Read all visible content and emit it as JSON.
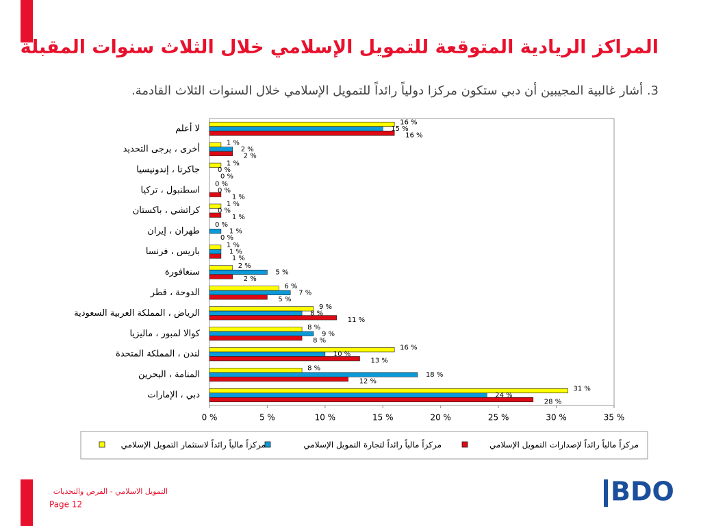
{
  "chart_data": {
    "type": "bar",
    "orientation": "horizontal",
    "title": "المراكز الريادية المتوقعة للتمويل الإسلامي خلال الثلاث سنوات المقبلة",
    "subtitle": "3. أشار غالبية المجيبين أن دبي ستكون مركزا دولياً رائداً للتمويل الإسلامي خلال السنوات الثلاث القادمة.",
    "categories": [
      "لا أعلم",
      "أخرى ، يرجى التحديد",
      "جاكرتا ، إندونيسيا",
      "اسطنبول ، تركيا",
      "كراتشي ، باكستان",
      "طهران ، إيران",
      "باريس ، فرنسا",
      "سنغافورة",
      "الدوحة ، قطر",
      "الرياض ، المملكة العربية السعودية",
      "كوالا لمبور ، ماليزيا",
      "لندن ، المملكة المتحدة",
      "المنامة ، البحرين",
      "دبي ، الإمارات"
    ],
    "series": [
      {
        "name": "مركزاً مالياً رائداً لاستثمار التمويل الإسلامي",
        "color": "#ffff00",
        "values": [
          16,
          1,
          1,
          0,
          1,
          0,
          1,
          2,
          6,
          9,
          8,
          16,
          8,
          31
        ],
        "value_labels": [
          "16 %",
          "1 %",
          "1 %",
          "0 %",
          "1 %",
          "0 %",
          "1 %",
          "2 %",
          "6 %",
          "9 %",
          "8 %",
          "16 %",
          "8 %",
          "31 %"
        ]
      },
      {
        "name": "مركزاً مالياً رائداً لتجارة التمويل الإسلامي",
        "color": "#0b9ad9",
        "values": [
          15,
          2,
          0,
          0,
          0,
          1,
          1,
          5,
          7,
          8,
          9,
          10,
          18,
          24
        ],
        "value_labels": [
          "15 %",
          "2 %",
          "0 %",
          "0 %",
          "0 %",
          "1 %",
          "1 %",
          "5 %",
          "7 %",
          "8 %",
          "9 %",
          "10 %",
          "18 %",
          "24 %"
        ]
      },
      {
        "name": "مركزاً مالياً رائداً لإصدارات التمويل الإسلامي",
        "color": "#dd0a14",
        "values": [
          16,
          2,
          0,
          1,
          1,
          0,
          1,
          2,
          5,
          11,
          8,
          13,
          12,
          28
        ],
        "value_labels": [
          "16 %",
          "2 %",
          "0 %",
          "1 %",
          "1 %",
          "0 %",
          "1 %",
          "2 %",
          "5 %",
          "11 %",
          "8 %",
          "13 %",
          "12 %",
          "28 %"
        ]
      }
    ],
    "xlim": [
      0,
      35
    ],
    "xticks": [
      {
        "value": 0,
        "label": "0 %"
      },
      {
        "value": 5,
        "label": "5 %"
      },
      {
        "value": 10,
        "label": "10 %"
      },
      {
        "value": 15,
        "label": "15 %"
      },
      {
        "value": 20,
        "label": "20 %"
      },
      {
        "value": 25,
        "label": "25 %"
      },
      {
        "value": 30,
        "label": "30 %"
      },
      {
        "value": 35,
        "label": "35 %"
      }
    ],
    "grid": false
  },
  "footer": {
    "text": "التمويل الاسلامي - الفرص والتحديات",
    "page": "Page 12",
    "logo": "BDO"
  }
}
